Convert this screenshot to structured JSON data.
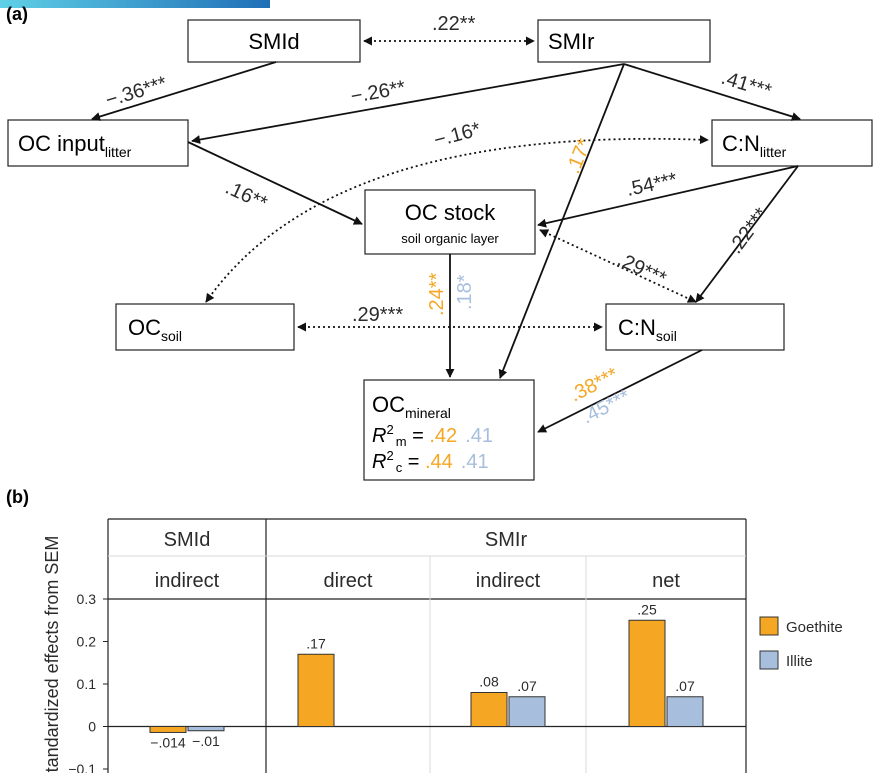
{
  "colors": {
    "goethite": "#F5A623",
    "illite": "#A7BFDD",
    "text": "#2b2b2b",
    "line": "#111111",
    "grid": "#d9d9d9"
  },
  "panel_a": {
    "label": "(a)",
    "nodes": {
      "smid": {
        "text": "SMId"
      },
      "smir": {
        "text": "SMIr"
      },
      "oc_input": {
        "main": "OC input",
        "sub": "litter"
      },
      "cn_litter": {
        "main": "C:N",
        "sub": "litter"
      },
      "oc_stock": {
        "main": "OC stock",
        "line2": "soil organic layer"
      },
      "oc_soil": {
        "main": "OC",
        "sub": "soil"
      },
      "cn_soil": {
        "main": "C:N",
        "sub": "soil"
      },
      "oc_mineral": {
        "main": "OC",
        "sub": "mineral",
        "r2m_label_sub": "m",
        "r2c_label_sub": "c",
        "r2m_goethite": ".42",
        "r2m_illite": ".41",
        "r2c_goethite": ".44",
        "r2c_illite": ".41"
      }
    },
    "paths": {
      "smid_smir": ".22**",
      "smid_ocinput": "−.36***",
      "smir_ocinput": "−.26**",
      "smir_cnlitter": ".41***",
      "ocinput_cnlitter": "−.16*",
      "smir_ocmineral": ".17*",
      "ocinput_ocstock": ".16**",
      "cnlitter_ocstock": ".54***",
      "cnlitter_cnsoil": ".22***",
      "ocstock_cnsoil": ".29***",
      "ocstock_ocmineral_goethite": ".24**",
      "ocstock_ocmineral_illite": ".18*",
      "ocsoil_cnsoil": ".29***",
      "cnsoil_ocmineral_goethite": ".38***",
      "cnsoil_ocmineral_illite": ".45***"
    }
  },
  "panel_b": {
    "label": "(b)",
    "chart_data": {
      "type": "bar",
      "ylabel": "Standardized effects from SEM",
      "ylim": [
        -0.1,
        0.3
      ],
      "yticks": [
        "0.3",
        "0.2",
        "0.1",
        "0",
        "−0.1"
      ],
      "ytick_values": [
        0.3,
        0.2,
        0.1,
        0,
        -0.1
      ],
      "groups": [
        {
          "header": "SMId",
          "categories": [
            "indirect"
          ]
        },
        {
          "header": "SMIr",
          "categories": [
            "direct",
            "indirect",
            "net"
          ]
        }
      ],
      "categories": [
        "indirect",
        "direct",
        "indirect",
        "net"
      ],
      "series": [
        {
          "name": "Goethite",
          "values": [
            -0.014,
            0.17,
            0.08,
            0.25
          ],
          "labels": [
            "−.014",
            ".17",
            ".08",
            ".25"
          ]
        },
        {
          "name": "Illite",
          "values": [
            -0.01,
            null,
            0.07,
            0.07
          ],
          "labels": [
            "−.01",
            "",
            ".07",
            ".07"
          ]
        }
      ],
      "legend": [
        "Goethite",
        "Illite"
      ]
    }
  }
}
